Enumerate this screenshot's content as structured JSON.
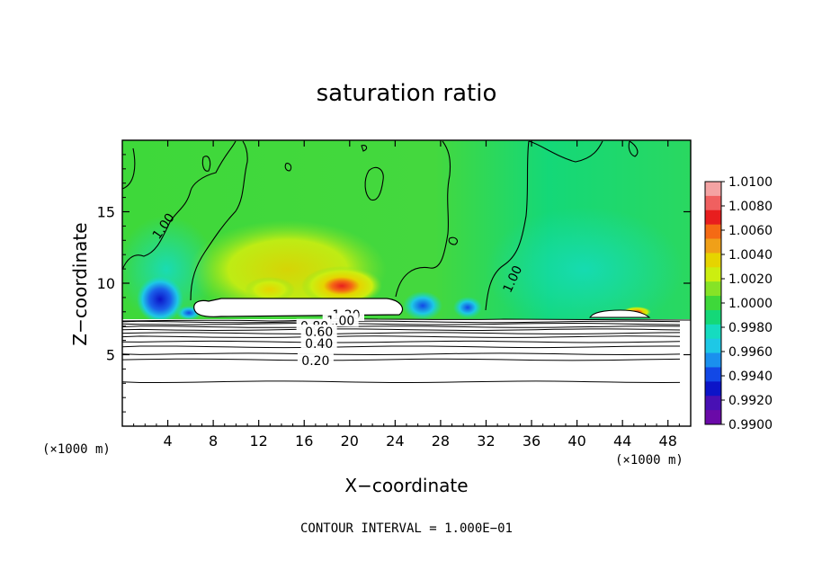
{
  "chart_data": {
    "type": "heatmap",
    "title": "saturation ratio",
    "xlabel": "X−coordinate",
    "ylabel": "Z−coordinate",
    "x_unit": "(×1000 m)",
    "y_unit": "(×1000 m)",
    "xlim": [
      0,
      50
    ],
    "ylim": [
      0,
      20
    ],
    "x_ticks": [
      4,
      8,
      12,
      16,
      20,
      24,
      28,
      32,
      36,
      40,
      44,
      48
    ],
    "y_ticks": [
      5,
      10,
      15
    ],
    "footnote": "CONTOUR INTERVAL = 1.000E−01",
    "colorbar": {
      "labels": [
        "1.0100",
        "1.0080",
        "1.0060",
        "1.0040",
        "1.0020",
        "1.0000",
        "0.9980",
        "0.9960",
        "0.9940",
        "0.9920",
        "0.9900"
      ],
      "colors": [
        "#f4a3a3",
        "#f06060",
        "#e81e1e",
        "#f56a14",
        "#f0a018",
        "#e6d400",
        "#ccee10",
        "#86e326",
        "#3ed83a",
        "#14d878",
        "#15dcc0",
        "#1ec8e6",
        "#1a90ee",
        "#1248e6",
        "#0c14c8",
        "#4810b4",
        "#6a0aa8"
      ]
    },
    "contour_labels": [
      {
        "text": "1.00",
        "x": 3.6,
        "z": 14.0
      },
      {
        "text": "1.00",
        "x": 34.3,
        "z": 10.3
      },
      {
        "text": "1.20",
        "x": 19.7,
        "z": 7.8
      },
      {
        "text": "1.00",
        "x": 19.2,
        "z": 7.4
      },
      {
        "text": "0.80",
        "x": 16.9,
        "z": 7.0
      },
      {
        "text": "0.60",
        "x": 17.3,
        "z": 6.6
      },
      {
        "text": "0.40",
        "x": 17.3,
        "z": 5.8
      },
      {
        "text": "0.20",
        "x": 17.0,
        "z": 4.6
      }
    ],
    "contour_levels_below_cloud": [
      {
        "value": 0.2,
        "z": 4.65
      },
      {
        "value": 0.4,
        "z": 5.55
      },
      {
        "value": 0.6,
        "z": 6.25
      },
      {
        "value": 0.8,
        "z": 6.75
      },
      {
        "value": 1.0,
        "z": 7.15
      }
    ],
    "extra_contours_z": [
      3.1,
      5.05,
      5.9,
      6.5,
      6.95,
      7.3
    ]
  }
}
